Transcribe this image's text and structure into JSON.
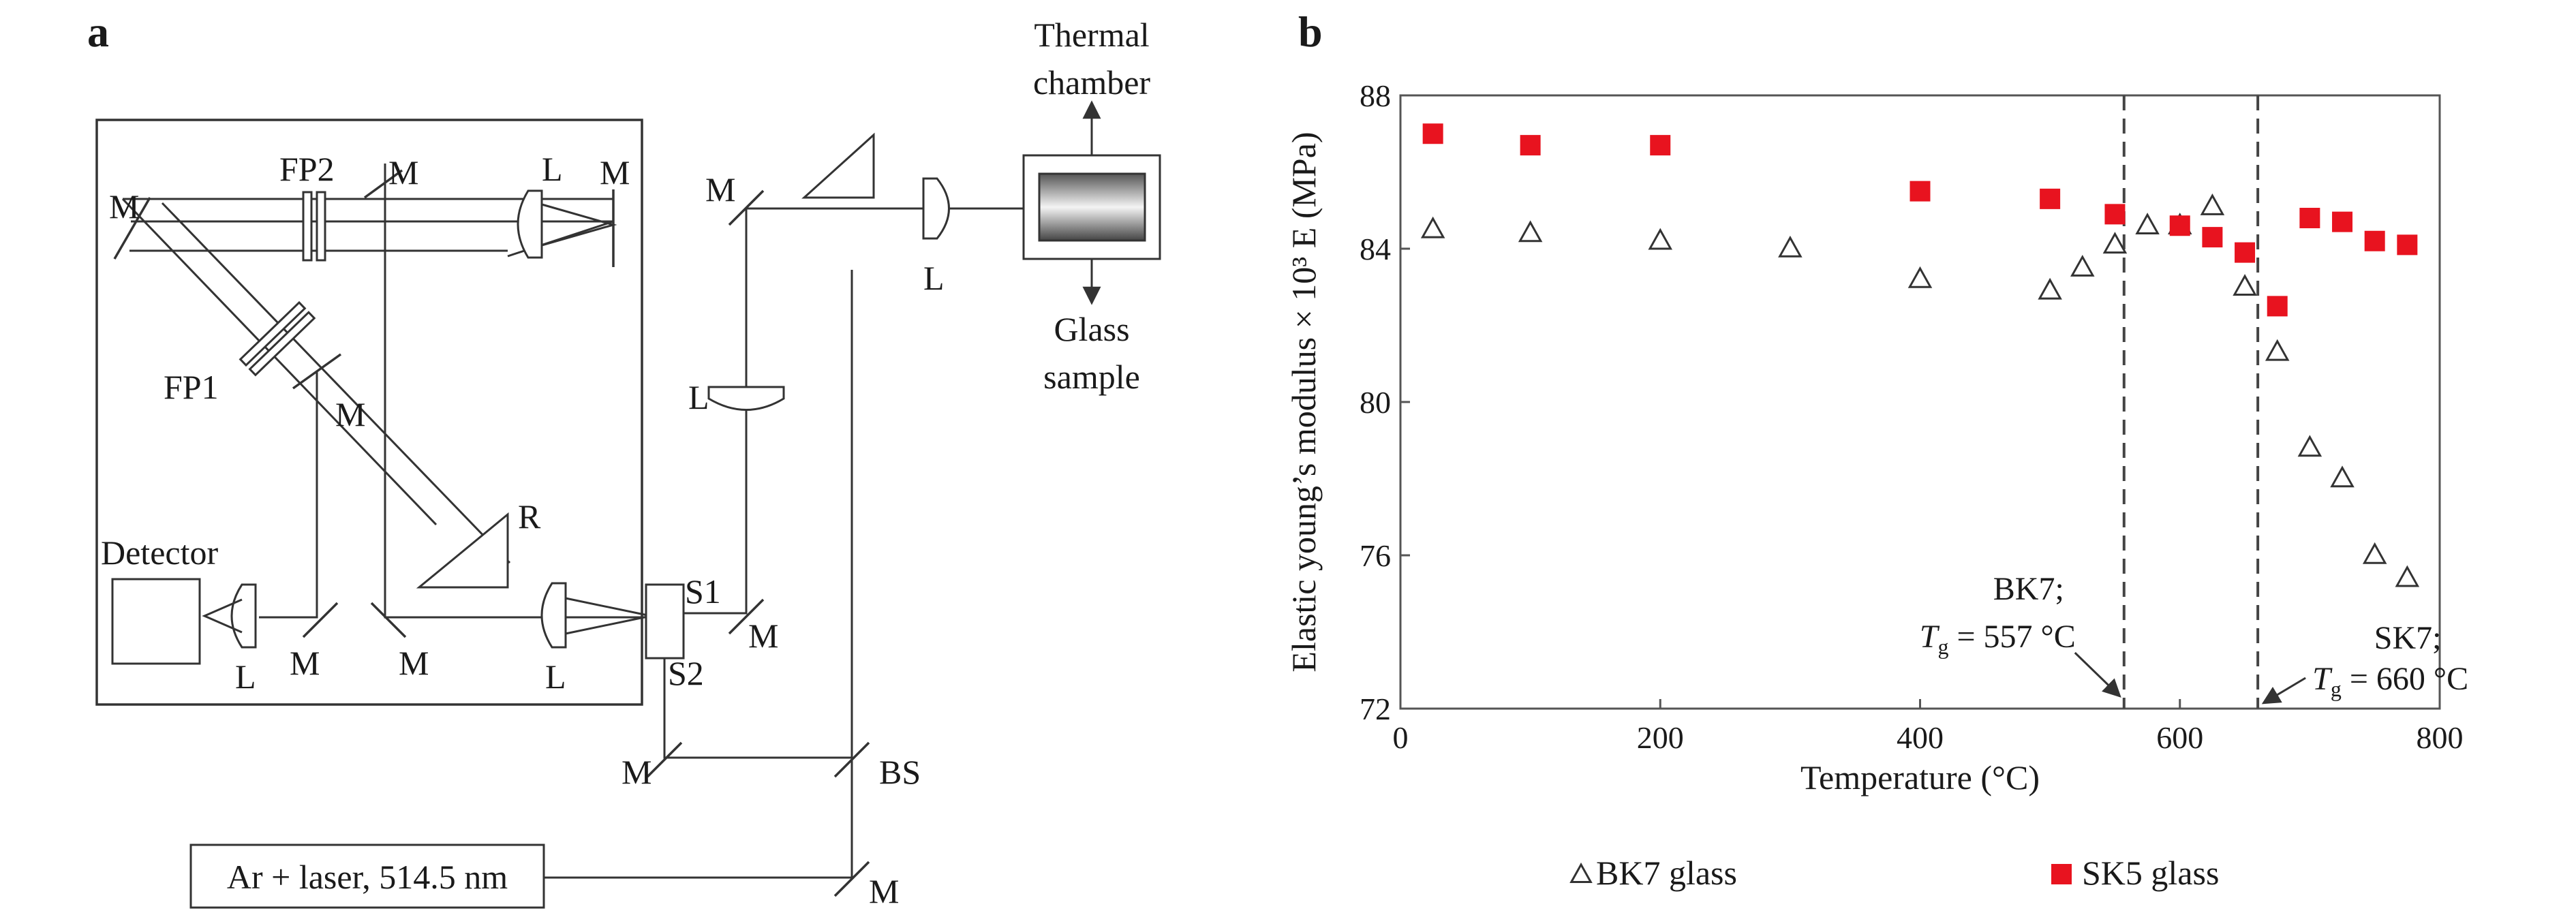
{
  "panel_a": {
    "label": "a",
    "labels": {
      "thermal_chamber_line1": "Thermal",
      "thermal_chamber_line2": "chamber",
      "glass_sample_line1": "Glass",
      "glass_sample_line2": "sample",
      "fp1": "FP1",
      "fp2": "FP2",
      "mirror": "M",
      "lens": "L",
      "retroreflector": "R",
      "detector": "Detector",
      "shutter1": "S1",
      "shutter2": "S2",
      "beam_splitter": "BS",
      "laser": "Ar + laser, 514.5 nm"
    }
  },
  "panel_b": {
    "label": "b",
    "chart_data": {
      "type": "scatter",
      "title": "",
      "xlabel": "Temperature (°C)",
      "ylabel": "Elastic young’s modulus × 10³ E (MPa)",
      "xlim": [
        0,
        800
      ],
      "ylim": [
        72,
        88
      ],
      "xticks": [
        0,
        200,
        400,
        600,
        800
      ],
      "yticks": [
        72,
        76,
        80,
        84,
        88
      ],
      "grid": false,
      "legend_position": "bottom",
      "series": [
        {
          "name": "BK7 glass",
          "marker": "open-triangle",
          "color": "#333333",
          "x": [
            25,
            100,
            200,
            300,
            400,
            500,
            525,
            550,
            575,
            600,
            625,
            650,
            675,
            700,
            725,
            750,
            775
          ],
          "y": [
            84.5,
            84.4,
            84.2,
            84.0,
            83.2,
            82.9,
            83.5,
            84.1,
            84.6,
            84.6,
            85.1,
            83.0,
            81.3,
            78.8,
            78.0,
            76.0,
            75.4
          ]
        },
        {
          "name": "SK5 glass",
          "marker": "filled-square",
          "color": "#e8131f",
          "x": [
            25,
            100,
            200,
            400,
            500,
            550,
            600,
            625,
            650,
            675,
            700,
            725,
            750,
            775
          ],
          "y": [
            87.0,
            86.7,
            86.7,
            85.5,
            85.3,
            84.9,
            84.6,
            84.3,
            83.9,
            82.5,
            84.8,
            84.7,
            84.2,
            84.1
          ]
        }
      ],
      "vlines": [
        {
          "x": 557,
          "label_line1": "BK7;",
          "label_line2": "T",
          "sub": "g",
          "label_rest": " = 557 °C"
        },
        {
          "x": 660,
          "label_line1": "SK7;",
          "label_line2": "T",
          "sub": "g",
          "label_rest": " = 660 °C"
        }
      ]
    }
  }
}
